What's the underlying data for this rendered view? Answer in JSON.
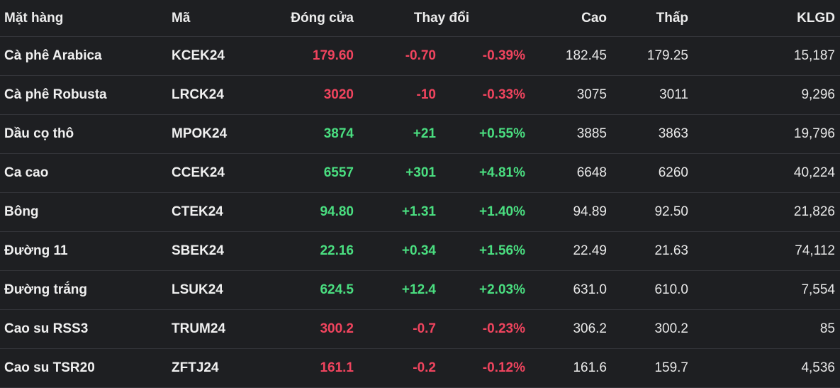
{
  "header": {
    "name": "Mặt hàng",
    "code": "Mã",
    "close": "Đóng cửa",
    "change": "Thay đổi",
    "high": "Cao",
    "low": "Thấp",
    "volume": "KLGD"
  },
  "colors": {
    "background": "#1e1f22",
    "up": "#4ade80",
    "down": "#f0445e",
    "divider": "#34353a"
  },
  "rows": [
    {
      "name": "Cà phê Arabica",
      "code": "KCEK24",
      "close": "179.60",
      "change": "-0.70",
      "pct": "-0.39%",
      "high": "182.45",
      "low": "179.25",
      "volume": "15,187",
      "direction": "down"
    },
    {
      "name": "Cà phê Robusta",
      "code": "LRCK24",
      "close": "3020",
      "change": "-10",
      "pct": "-0.33%",
      "high": "3075",
      "low": "3011",
      "volume": "9,296",
      "direction": "down"
    },
    {
      "name": "Dầu cọ thô",
      "code": "MPOK24",
      "close": "3874",
      "change": "+21",
      "pct": "+0.55%",
      "high": "3885",
      "low": "3863",
      "volume": "19,796",
      "direction": "up"
    },
    {
      "name": "Ca cao",
      "code": "CCEK24",
      "close": "6557",
      "change": "+301",
      "pct": "+4.81%",
      "high": "6648",
      "low": "6260",
      "volume": "40,224",
      "direction": "up"
    },
    {
      "name": "Bông",
      "code": "CTEK24",
      "close": "94.80",
      "change": "+1.31",
      "pct": "+1.40%",
      "high": "94.89",
      "low": "92.50",
      "volume": "21,826",
      "direction": "up"
    },
    {
      "name": "Đường 11",
      "code": "SBEK24",
      "close": "22.16",
      "change": "+0.34",
      "pct": "+1.56%",
      "high": "22.49",
      "low": "21.63",
      "volume": "74,112",
      "direction": "up"
    },
    {
      "name": "Đường trắng",
      "code": "LSUK24",
      "close": "624.5",
      "change": "+12.4",
      "pct": "+2.03%",
      "high": "631.0",
      "low": "610.0",
      "volume": "7,554",
      "direction": "up"
    },
    {
      "name": "Cao su RSS3",
      "code": "TRUM24",
      "close": "300.2",
      "change": "-0.7",
      "pct": "-0.23%",
      "high": "306.2",
      "low": "300.2",
      "volume": "85",
      "direction": "down"
    },
    {
      "name": "Cao su TSR20",
      "code": "ZFTJ24",
      "close": "161.1",
      "change": "-0.2",
      "pct": "-0.12%",
      "high": "161.6",
      "low": "159.7",
      "volume": "4,536",
      "direction": "down"
    }
  ]
}
